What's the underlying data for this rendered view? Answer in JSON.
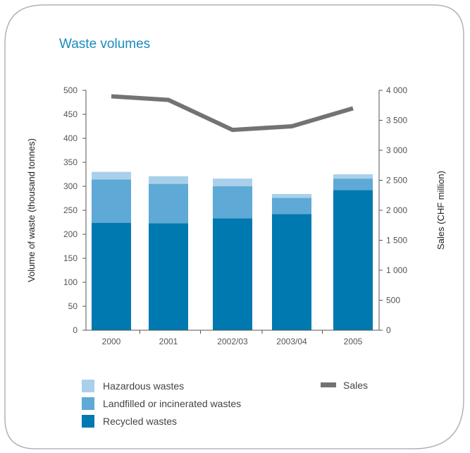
{
  "chart_data": {
    "type": "bar",
    "title": "Waste volumes",
    "categories": [
      "2000",
      "2001",
      "2002/03",
      "2003/04",
      "2005"
    ],
    "ylabel": "Volume of waste (thousand tonnes)",
    "ylim": [
      0,
      500
    ],
    "yticks": [
      "0",
      "50",
      "100",
      "150",
      "200",
      "250",
      "300",
      "350",
      "400",
      "450",
      "500"
    ],
    "y2label": "Sales (CHF million)",
    "y2lim": [
      0,
      4000
    ],
    "y2ticks": [
      "0",
      "500",
      "1 000",
      "1 500",
      "2 000",
      "2 500",
      "3 000",
      "3 500",
      "4 000"
    ],
    "stacked": true,
    "grid": false,
    "legend_position": "bottom",
    "series": [
      {
        "name": "Recycled wastes",
        "color": "#0079b0",
        "axis": "left",
        "kind": "bar",
        "values": [
          224,
          223,
          233,
          242,
          292
        ]
      },
      {
        "name": "Landfilled or incinerated wastes",
        "color": "#5ea9d5",
        "axis": "left",
        "kind": "bar",
        "values": [
          90,
          82,
          67,
          34,
          24
        ]
      },
      {
        "name": "Hazardous wastes",
        "color": "#a9d0ea",
        "axis": "left",
        "kind": "bar",
        "values": [
          16,
          16,
          16,
          8,
          9
        ]
      },
      {
        "name": "Sales",
        "color": "#737373",
        "axis": "right",
        "kind": "line",
        "values": [
          3900,
          3840,
          3340,
          3400,
          3700
        ]
      }
    ],
    "legend": {
      "column1": [
        "Hazardous wastes",
        "Landfilled or incinerated wastes",
        "Recycled wastes"
      ],
      "column2": [
        "Sales"
      ]
    }
  }
}
